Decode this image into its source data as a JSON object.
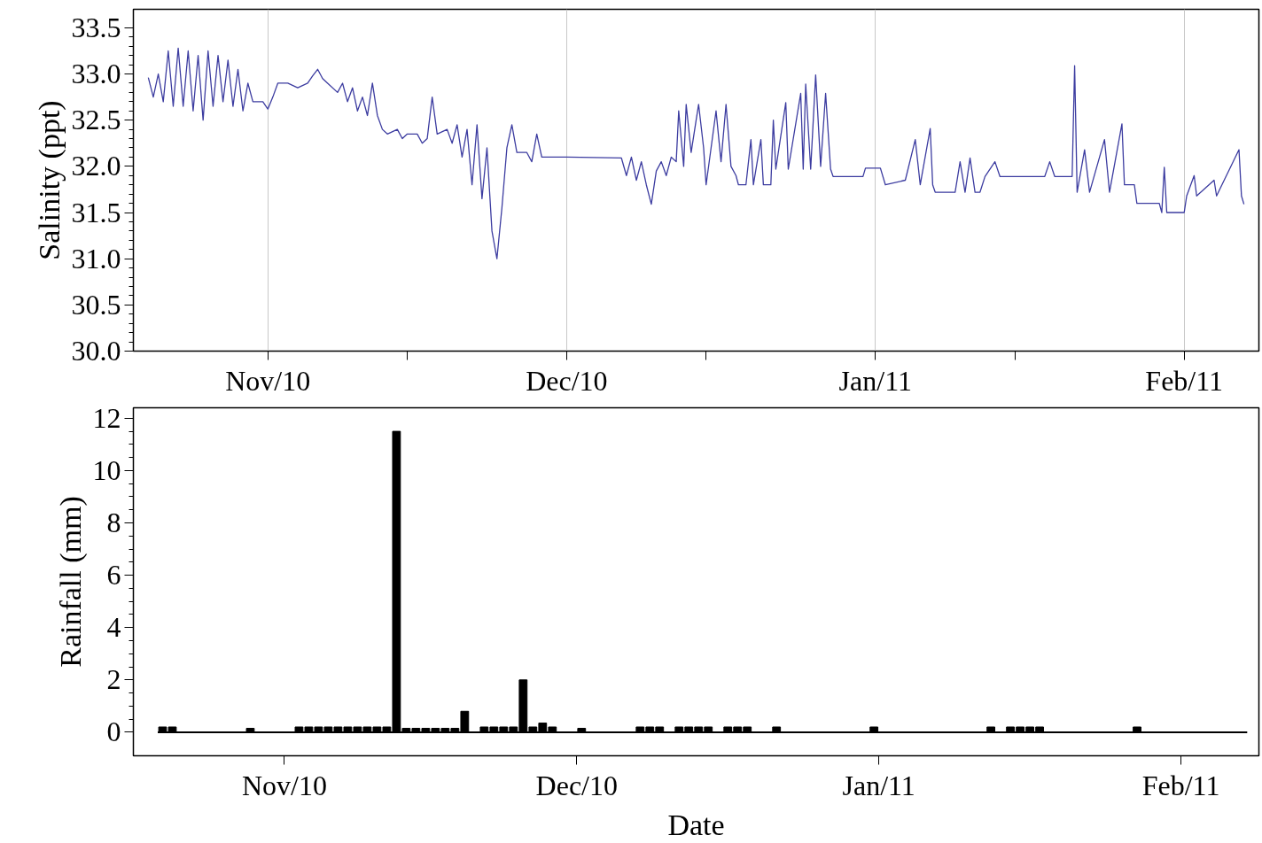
{
  "chart_data": [
    {
      "type": "line",
      "ylabel": "Salinity (ppt)",
      "color": "#3c3ca0",
      "grid": "x",
      "xlim": [
        "2010-10-18T12:00",
        "2011-02-08T12:00"
      ],
      "ylim": [
        30,
        33.7
      ],
      "yticks": [
        {
          "value": 30,
          "label": "30.0"
        },
        {
          "value": 30.5,
          "label": "30.5"
        },
        {
          "value": 31,
          "label": "31.0"
        },
        {
          "value": 31.5,
          "label": "31.5"
        },
        {
          "value": 32,
          "label": "32.0"
        },
        {
          "value": 32.5,
          "label": "32.5"
        },
        {
          "value": 33,
          "label": "33.0"
        },
        {
          "value": 33.5,
          "label": "33.5"
        }
      ],
      "xticks": [
        {
          "value": "2010-11-01",
          "label": "Nov/10"
        },
        {
          "value": "2010-11-15",
          "label": null
        },
        {
          "value": "2010-12-01",
          "label": "Dec/10"
        },
        {
          "value": "2010-12-15",
          "label": null
        },
        {
          "value": "2011-01-01",
          "label": "Jan/11"
        },
        {
          "value": "2011-01-15",
          "label": null
        },
        {
          "value": "2011-02-01",
          "label": "Feb/11"
        }
      ],
      "x": [
        "2010-10-20",
        "2010-10-20T12:00",
        "2010-10-21",
        "2010-10-21T12:00",
        "2010-10-22",
        "2010-10-22T12:00",
        "2010-10-23",
        "2010-10-23T12:00",
        "2010-10-24",
        "2010-10-24T12:00",
        "2010-10-25",
        "2010-10-25T12:00",
        "2010-10-26",
        "2010-10-26T12:00",
        "2010-10-27",
        "2010-10-27T12:00",
        "2010-10-28",
        "2010-10-28T12:00",
        "2010-10-29",
        "2010-10-29T12:00",
        "2010-10-30",
        "2010-10-30T12:00",
        "2010-10-31",
        "2010-10-31T12:00",
        "2010-11-01",
        "2010-11-01T12:00",
        "2010-11-02",
        "2010-11-03",
        "2010-11-04",
        "2010-11-05",
        "2010-11-05T12:00",
        "2010-11-06",
        "2010-11-06T12:00",
        "2010-11-07",
        "2010-11-08",
        "2010-11-08T12:00",
        "2010-11-09",
        "2010-11-09T12:00",
        "2010-11-10",
        "2010-11-10T12:00",
        "2010-11-11",
        "2010-11-11T12:00",
        "2010-11-12",
        "2010-11-12T12:00",
        "2010-11-13",
        "2010-11-14",
        "2010-11-14T12:00",
        "2010-11-15",
        "2010-11-16",
        "2010-11-16T12:00",
        "2010-11-17",
        "2010-11-17T12:00",
        "2010-11-18",
        "2010-11-19",
        "2010-11-19T12:00",
        "2010-11-20",
        "2010-11-20T12:00",
        "2010-11-21",
        "2010-11-21T12:00",
        "2010-11-22",
        "2010-11-22T12:00",
        "2010-11-23",
        "2010-11-23T12:00",
        "2010-11-24",
        "2010-11-24T12:00",
        "2010-11-25",
        "2010-11-25T12:00",
        "2010-11-26",
        "2010-11-27",
        "2010-11-27T12:00",
        "2010-11-28",
        "2010-11-28T12:00",
        "2010-11-29",
        "2010-12-01",
        "2010-12-06T12:00",
        "2010-12-07",
        "2010-12-07T12:00",
        "2010-12-08",
        "2010-12-08T12:00",
        "2010-12-09",
        "2010-12-09T12:00",
        "2010-12-10",
        "2010-12-10T12:00",
        "2010-12-11",
        "2010-12-11T12:00",
        "2010-12-12",
        "2010-12-12T06:00",
        "2010-12-12T18:00",
        "2010-12-13",
        "2010-12-13T12:00",
        "2010-12-14",
        "2010-12-14T06:00",
        "2010-12-14T18:00",
        "2010-12-15",
        "2010-12-15T12:00",
        "2010-12-16",
        "2010-12-16T12:00",
        "2010-12-17",
        "2010-12-17T12:00",
        "2010-12-18",
        "2010-12-18T06:00",
        "2010-12-19",
        "2010-12-19T12:00",
        "2010-12-19T18:00",
        "2010-12-20T12:00",
        "2010-12-20T18:00",
        "2010-12-21T12:00",
        "2010-12-21T18:00",
        "2010-12-22",
        "2010-12-23",
        "2010-12-23T06:00",
        "2010-12-24T12:00",
        "2010-12-24T18:00",
        "2010-12-25",
        "2010-12-25T12:00",
        "2010-12-26",
        "2010-12-26T12:00",
        "2010-12-27",
        "2010-12-27T12:00",
        "2010-12-27T18:00",
        "2010-12-30T18:00",
        "2010-12-31",
        "2011-01-01T12:00",
        "2011-01-02",
        "2011-01-04",
        "2011-01-05",
        "2011-01-05T12:00",
        "2011-01-06T12:00",
        "2011-01-06T18:00",
        "2011-01-07",
        "2011-01-09",
        "2011-01-09T12:00",
        "2011-01-10",
        "2011-01-10T12:00",
        "2011-01-11",
        "2011-01-11T12:00",
        "2011-01-12",
        "2011-01-13",
        "2011-01-13T12:00",
        "2011-01-18",
        "2011-01-18T12:00",
        "2011-01-19",
        "2011-01-20T18:00",
        "2011-01-21",
        "2011-01-21T06:00",
        "2011-01-22",
        "2011-01-22T12:00",
        "2011-01-24",
        "2011-01-24T12:00",
        "2011-01-25T18:00",
        "2011-01-26",
        "2011-01-27",
        "2011-01-27T06:00",
        "2011-01-29T12:00",
        "2011-01-29T18:00",
        "2011-01-30",
        "2011-01-30T06:00",
        "2011-02-01",
        "2011-02-01T06:00",
        "2011-02-02",
        "2011-02-02T06:00",
        "2011-02-04",
        "2011-02-04T06:00",
        "2011-02-06T12:00",
        "2011-02-06T18:00",
        "2011-02-07"
      ],
      "values": [
        32.96,
        32.75,
        33.0,
        32.7,
        33.25,
        32.65,
        33.28,
        32.65,
        33.25,
        32.6,
        33.2,
        32.5,
        33.25,
        32.65,
        33.2,
        32.7,
        33.15,
        32.65,
        33.05,
        32.6,
        32.9,
        32.7,
        32.7,
        32.7,
        32.62,
        32.75,
        32.9,
        32.9,
        32.85,
        32.9,
        32.98,
        33.05,
        32.95,
        32.9,
        32.8,
        32.9,
        32.7,
        32.85,
        32.6,
        32.75,
        32.55,
        32.9,
        32.55,
        32.4,
        32.35,
        32.4,
        32.3,
        32.35,
        32.35,
        32.25,
        32.3,
        32.75,
        32.35,
        32.4,
        32.25,
        32.45,
        32.1,
        32.4,
        31.8,
        32.45,
        31.65,
        32.2,
        31.3,
        31.0,
        31.55,
        32.2,
        32.45,
        32.15,
        32.15,
        32.05,
        32.35,
        32.1,
        32.1,
        32.1,
        32.09,
        31.9,
        32.1,
        31.85,
        32.05,
        31.8,
        31.59,
        31.95,
        32.05,
        31.9,
        32.1,
        32.05,
        32.6,
        32.0,
        32.67,
        32.15,
        32.5,
        32.67,
        32.2,
        31.8,
        32.2,
        32.6,
        32.05,
        32.67,
        32.0,
        31.9,
        31.8,
        31.8,
        32.29,
        31.8,
        32.29,
        31.8,
        31.8,
        32.5,
        31.97,
        32.69,
        31.97,
        32.79,
        31.97,
        32.89,
        31.97,
        32.99,
        32.0,
        32.79,
        31.97,
        31.89,
        31.89,
        31.98,
        31.98,
        31.8,
        31.85,
        32.29,
        31.8,
        32.41,
        31.8,
        31.72,
        31.72,
        32.05,
        31.72,
        32.09,
        31.72,
        31.72,
        31.89,
        32.05,
        31.89,
        31.89,
        32.05,
        31.89,
        31.89,
        33.09,
        31.72,
        32.18,
        31.72,
        32.29,
        31.72,
        32.46,
        31.8,
        31.8,
        31.6,
        31.6,
        31.5,
        31.99,
        31.5,
        31.5,
        31.68,
        31.9,
        31.68,
        31.85,
        31.68,
        32.18,
        31.68,
        31.59
      ]
    },
    {
      "type": "bar",
      "ylabel": "Rainfall (mm)",
      "xlabel": "Date",
      "color": "#000000",
      "xlim": [
        "2010-10-16T12:00",
        "2011-02-09"
      ],
      "ylim": [
        -0.9,
        12.4
      ],
      "yticks": [
        0,
        2,
        4,
        6,
        8,
        10,
        12
      ],
      "xticks": [
        {
          "value": "2010-11-01",
          "label": "Nov/10"
        },
        {
          "value": "2010-12-01",
          "label": "Dec/10"
        },
        {
          "value": "2011-01-01",
          "label": "Jan/11"
        },
        {
          "value": "2011-02-01",
          "label": "Feb/11"
        }
      ],
      "x": [
        "2010-10-19T12:00",
        "2010-10-20T12:00",
        "2010-10-28T12:00",
        "2010-11-02T12:00",
        "2010-11-03T12:00",
        "2010-11-04T12:00",
        "2010-11-05T12:00",
        "2010-11-06T12:00",
        "2010-11-07T12:00",
        "2010-11-08T12:00",
        "2010-11-09T12:00",
        "2010-11-10T12:00",
        "2010-11-11T12:00",
        "2010-11-12T12:00",
        "2010-11-13T12:00",
        "2010-11-14T12:00",
        "2010-11-15T12:00",
        "2010-11-16T12:00",
        "2010-11-17T12:00",
        "2010-11-18T12:00",
        "2010-11-19T12:00",
        "2010-11-21T12:00",
        "2010-11-22T12:00",
        "2010-11-23T12:00",
        "2010-11-24T12:00",
        "2010-11-25T12:00",
        "2010-11-26T12:00",
        "2010-11-27T12:00",
        "2010-11-28T12:00",
        "2010-12-01T12:00",
        "2010-12-07T12:00",
        "2010-12-08T12:00",
        "2010-12-09T12:00",
        "2010-12-11T12:00",
        "2010-12-12T12:00",
        "2010-12-13T12:00",
        "2010-12-14T12:00",
        "2010-12-16T12:00",
        "2010-12-17T12:00",
        "2010-12-18T12:00",
        "2010-12-21T12:00",
        "2010-12-31T12:00",
        "2011-01-12T12:00",
        "2011-01-14T12:00",
        "2011-01-15T12:00",
        "2011-01-16T12:00",
        "2011-01-17T12:00",
        "2011-01-27T12:00"
      ],
      "values": [
        0.2,
        0.2,
        0.15,
        0.2,
        0.2,
        0.2,
        0.2,
        0.2,
        0.2,
        0.2,
        0.2,
        0.2,
        0.2,
        11.5,
        0.15,
        0.15,
        0.15,
        0.15,
        0.15,
        0.15,
        0.8,
        0.2,
        0.2,
        0.2,
        0.2,
        2.0,
        0.2,
        0.35,
        0.2,
        0.15,
        0.2,
        0.2,
        0.2,
        0.2,
        0.2,
        0.2,
        0.2,
        0.2,
        0.2,
        0.2,
        0.2,
        0.2,
        0.2,
        0.2,
        0.2,
        0.2,
        0.2,
        0.2
      ]
    }
  ]
}
